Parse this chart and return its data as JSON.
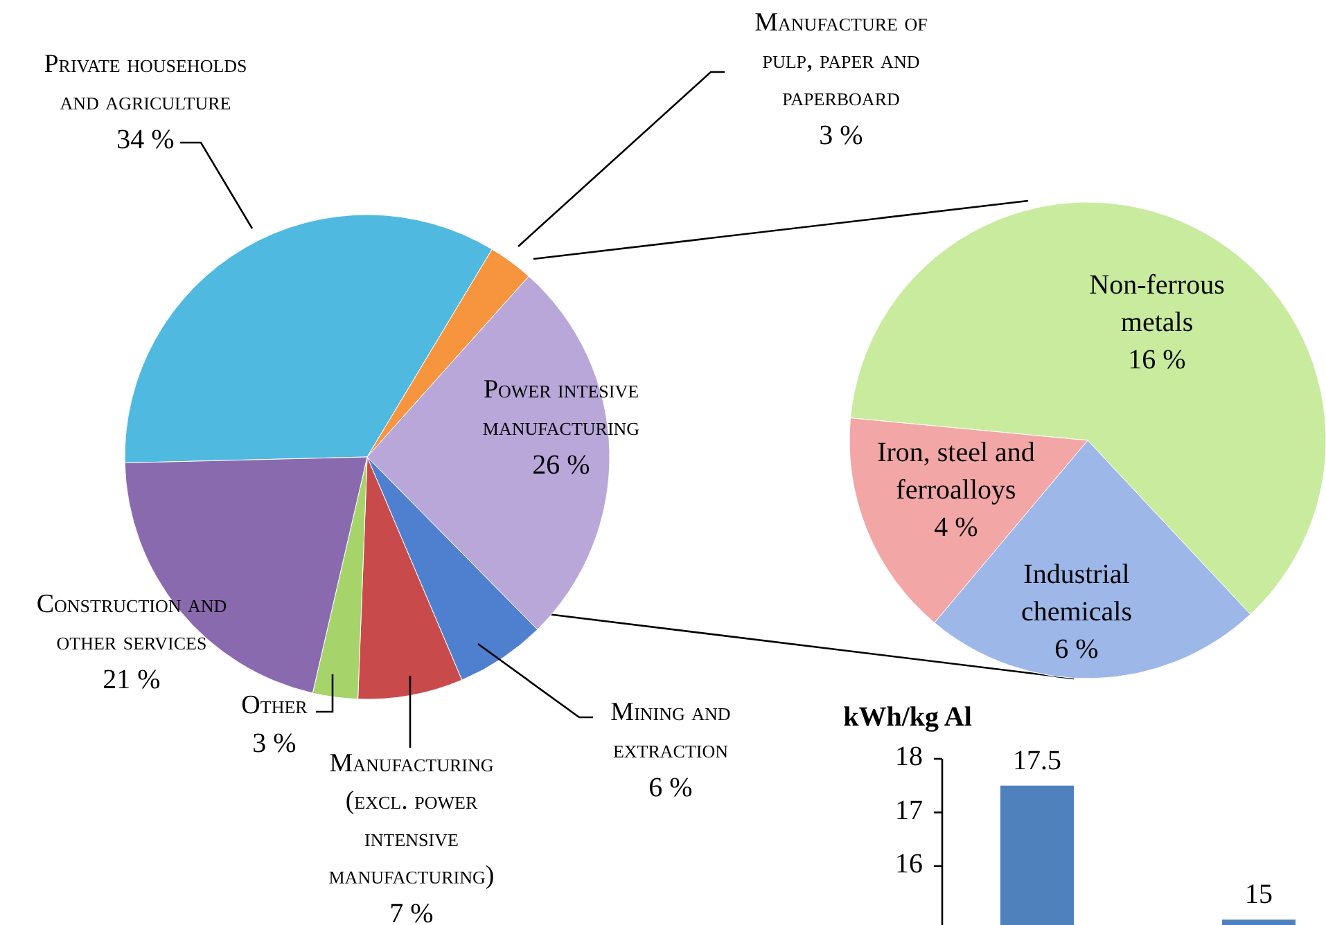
{
  "chart_data": [
    {
      "type": "pie",
      "categories": [
        "Private households and agriculture",
        "Manufacture of pulp, paper and paperboard",
        "Power intesive manufacturing",
        "Mining and extraction",
        "Manufacturing (excl. power intensive manufacturing)",
        "Other",
        "Construction and other services"
      ],
      "values": [
        34,
        3,
        26,
        6,
        7,
        3,
        21
      ],
      "value_labels": [
        "34 %",
        "3 %",
        "26 %",
        "6 %",
        "7 %",
        "3 %",
        "21 %"
      ],
      "colors": [
        "#4fb9e0",
        "#f7953f",
        "#b9a7da",
        "#4f7fcf",
        "#c94a4a",
        "#a6d36a",
        "#8a6aae"
      ]
    },
    {
      "type": "pie",
      "categories": [
        "Non-ferrous metals",
        "Industrial chemicals",
        "Iron, steel and ferroalloys"
      ],
      "values": [
        16,
        6,
        4
      ],
      "value_labels": [
        "16 %",
        "6 %",
        "4 %"
      ],
      "colors": [
        "#c8eb9e",
        "#9db7e8",
        "#f2a6a6"
      ]
    },
    {
      "type": "bar",
      "ylabel": "kWh/kg Al",
      "categories": [
        null,
        null
      ],
      "values": [
        17.5,
        15
      ],
      "color": "#4f81bd",
      "ylim": [
        14.9,
        18
      ],
      "yticks": [
        16,
        17,
        18
      ],
      "data_labels": true
    }
  ]
}
